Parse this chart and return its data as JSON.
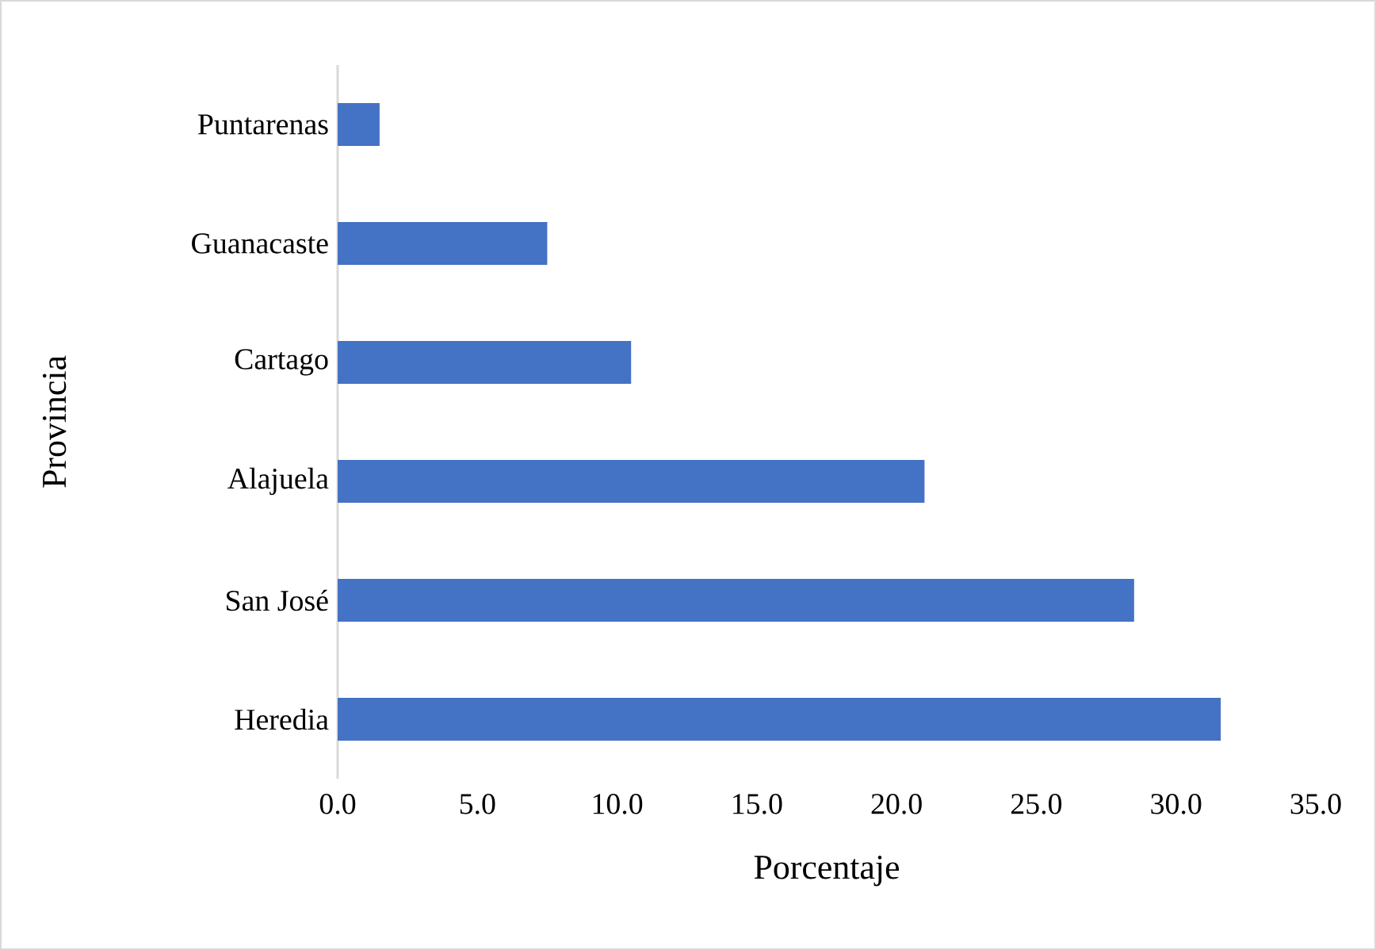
{
  "chart_data": {
    "type": "bar",
    "orientation": "horizontal",
    "xlabel": "Porcentaje",
    "ylabel": "Provincia",
    "categories": [
      "Puntarenas",
      "Guanacaste",
      "Cartago",
      "Alajuela",
      "San José",
      "Heredia"
    ],
    "values": [
      1.5,
      7.5,
      10.5,
      21.0,
      28.5,
      31.6
    ],
    "color": "#4472c4",
    "xlim": [
      0,
      35
    ],
    "xticks": [
      {
        "value": 0,
        "label": "0.0"
      },
      {
        "value": 5,
        "label": "5.0"
      },
      {
        "value": 10,
        "label": "10.0"
      },
      {
        "value": 15,
        "label": "15.0"
      },
      {
        "value": 20,
        "label": "20.0"
      },
      {
        "value": 25,
        "label": "25.0"
      },
      {
        "value": 30,
        "label": "30.0"
      },
      {
        "value": 35,
        "label": "35.0"
      }
    ]
  }
}
